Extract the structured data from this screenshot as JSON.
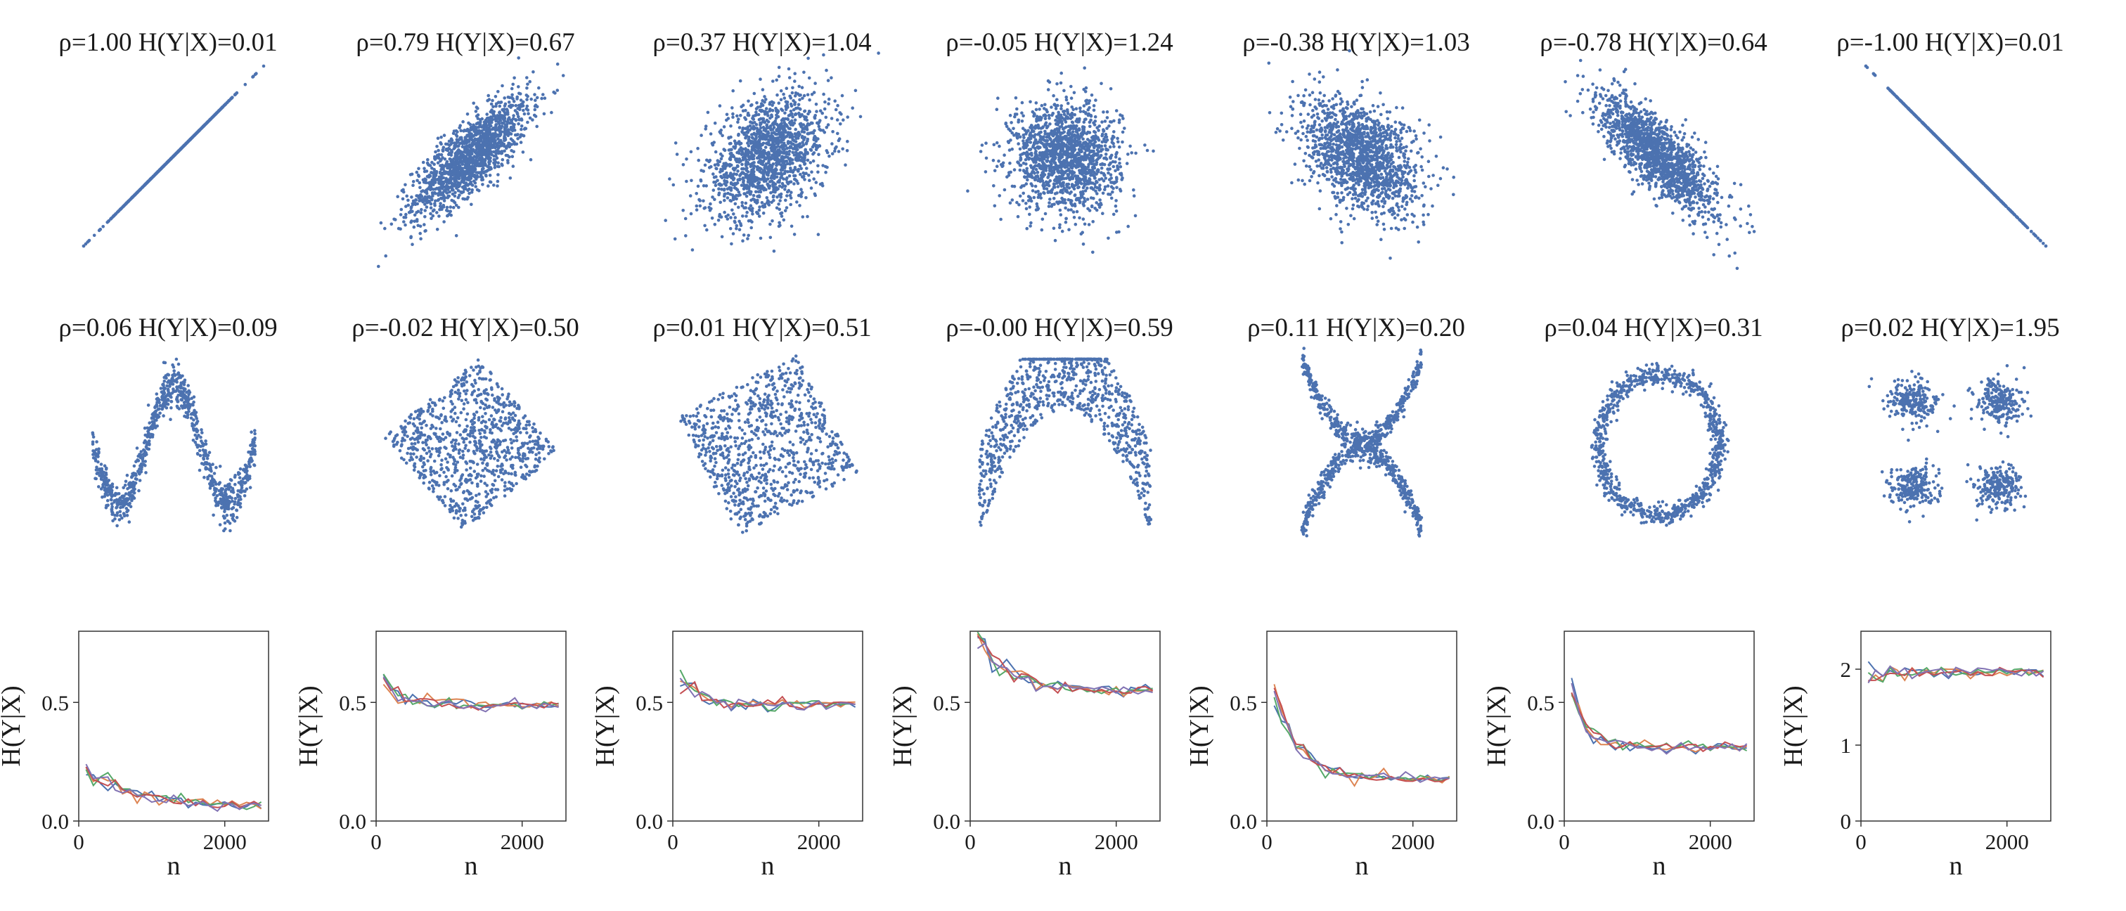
{
  "figure": {
    "background": "#ffffff",
    "point_color": "#4c72b0",
    "line_colors": [
      "#4c72b0",
      "#dd8452",
      "#55a868",
      "#c44e52",
      "#8172b3"
    ]
  },
  "chart_data": [
    {
      "type": "scatter",
      "pattern": "line_pos",
      "rho": "ρ=1.00",
      "hyx": "H(Y|X)=0.01",
      "title": "ρ=1.00  H(Y|X)=0.01"
    },
    {
      "type": "scatter",
      "pattern": "corr_pos_079",
      "rho": "ρ=0.79",
      "hyx": "H(Y|X)=0.67",
      "title": "ρ=0.79  H(Y|X)=0.67"
    },
    {
      "type": "scatter",
      "pattern": "corr_pos_037",
      "rho": "ρ=0.37",
      "hyx": "H(Y|X)=1.04",
      "title": "ρ=0.37  H(Y|X)=1.04"
    },
    {
      "type": "scatter",
      "pattern": "corr_zero",
      "rho": "ρ=-0.05",
      "hyx": "H(Y|X)=1.24",
      "title": "ρ=-0.05  H(Y|X)=1.24"
    },
    {
      "type": "scatter",
      "pattern": "corr_neg_038",
      "rho": "ρ=-0.38",
      "hyx": "H(Y|X)=1.03",
      "title": "ρ=-0.38  H(Y|X)=1.03"
    },
    {
      "type": "scatter",
      "pattern": "corr_neg_078",
      "rho": "ρ=-0.78",
      "hyx": "H(Y|X)=0.64",
      "title": "ρ=-0.78  H(Y|X)=0.64"
    },
    {
      "type": "scatter",
      "pattern": "line_neg",
      "rho": "ρ=-1.00",
      "hyx": "H(Y|X)=0.01",
      "title": "ρ=-1.00  H(Y|X)=0.01"
    },
    {
      "type": "scatter",
      "pattern": "w_shape",
      "rho": "ρ=0.06",
      "hyx": "H(Y|X)=0.09",
      "title": "ρ=0.06  H(Y|X)=0.09"
    },
    {
      "type": "scatter",
      "pattern": "rotated_square_45",
      "rho": "ρ=-0.02",
      "hyx": "H(Y|X)=0.50",
      "title": "ρ=-0.02  H(Y|X)=0.50"
    },
    {
      "type": "scatter",
      "pattern": "rotated_square_30",
      "rho": "ρ=0.01",
      "hyx": "H(Y|X)=0.51",
      "title": "ρ=0.01  H(Y|X)=0.51"
    },
    {
      "type": "scatter",
      "pattern": "parabola",
      "rho": "ρ=-0.00",
      "hyx": "H(Y|X)=0.59",
      "title": "ρ=-0.00  H(Y|X)=0.59"
    },
    {
      "type": "scatter",
      "pattern": "x_shape",
      "rho": "ρ=0.11",
      "hyx": "H(Y|X)=0.20",
      "title": "ρ=0.11  H(Y|X)=0.20"
    },
    {
      "type": "scatter",
      "pattern": "ring",
      "rho": "ρ=0.04",
      "hyx": "H(Y|X)=0.31",
      "title": "ρ=0.04  H(Y|X)=0.31"
    },
    {
      "type": "scatter",
      "pattern": "four_clusters",
      "rho": "ρ=0.02",
      "hyx": "H(Y|X)=1.95",
      "title": "ρ=0.02  H(Y|X)=1.95"
    },
    {
      "type": "line",
      "xlabel": "n",
      "ylabel": "H(Y|X)",
      "xlim": [
        0,
        2600
      ],
      "ylim": [
        0,
        0.8
      ],
      "xticks": [
        0,
        2000
      ],
      "xtick_labels": [
        "0",
        "2000"
      ],
      "yticks": [
        0,
        0.5
      ],
      "ytick_labels": [
        "0.0",
        "0.5"
      ],
      "start": 0.22,
      "end": 0.06,
      "rate": 650
    },
    {
      "type": "line",
      "xlabel": "n",
      "ylabel": "H(Y|X)",
      "xlim": [
        0,
        2600
      ],
      "ylim": [
        0,
        0.8
      ],
      "xticks": [
        0,
        2000
      ],
      "xtick_labels": [
        "0",
        "2000"
      ],
      "yticks": [
        0,
        0.5
      ],
      "ytick_labels": [
        "0.0",
        "0.5"
      ],
      "start": 0.6,
      "end": 0.49,
      "rate": 250
    },
    {
      "type": "line",
      "xlabel": "n",
      "ylabel": "H(Y|X)",
      "xlim": [
        0,
        2600
      ],
      "ylim": [
        0,
        0.8
      ],
      "xticks": [
        0,
        2000
      ],
      "xtick_labels": [
        "0",
        "2000"
      ],
      "yticks": [
        0,
        0.5
      ],
      "ytick_labels": [
        "0.0",
        "0.5"
      ],
      "start": 0.6,
      "end": 0.49,
      "rate": 250
    },
    {
      "type": "line",
      "xlabel": "n",
      "ylabel": "H(Y|X)",
      "xlim": [
        0,
        2600
      ],
      "ylim": [
        0,
        0.8
      ],
      "xticks": [
        0,
        2000
      ],
      "xtick_labels": [
        "0",
        "2000"
      ],
      "yticks": [
        0,
        0.5
      ],
      "ytick_labels": [
        "0.0",
        "0.5"
      ],
      "start": 0.78,
      "end": 0.55,
      "rate": 400
    },
    {
      "type": "line",
      "xlabel": "n",
      "ylabel": "H(Y|X)",
      "xlim": [
        0,
        2600
      ],
      "ylim": [
        0,
        0.8
      ],
      "xticks": [
        0,
        2000
      ],
      "xtick_labels": [
        "0",
        "2000"
      ],
      "yticks": [
        0,
        0.5
      ],
      "ytick_labels": [
        "0.0",
        "0.5"
      ],
      "start": 0.55,
      "end": 0.18,
      "rate": 330
    },
    {
      "type": "line",
      "xlabel": "n",
      "ylabel": "H(Y|X)",
      "xlim": [
        0,
        2600
      ],
      "ylim": [
        0,
        0.8
      ],
      "xticks": [
        0,
        2000
      ],
      "xtick_labels": [
        "0",
        "2000"
      ],
      "yticks": [
        0,
        0.5
      ],
      "ytick_labels": [
        "0.0",
        "0.5"
      ],
      "start": 0.56,
      "end": 0.31,
      "rate": 200
    },
    {
      "type": "line",
      "xlabel": "n",
      "ylabel": "H(Y|X)",
      "xlim": [
        0,
        2600
      ],
      "ylim": [
        0,
        2.5
      ],
      "xticks": [
        0,
        2000
      ],
      "xtick_labels": [
        "0",
        "2000"
      ],
      "yticks": [
        0,
        1,
        2
      ],
      "ytick_labels": [
        "0",
        "1",
        "2"
      ],
      "start": 1.9,
      "end": 1.96,
      "rate": 200
    }
  ]
}
